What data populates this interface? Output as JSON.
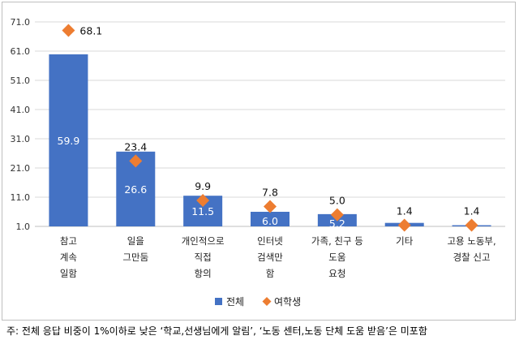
{
  "chart_data": {
    "type": "bar",
    "categories": [
      [
        "참고",
        "계속",
        "일함"
      ],
      [
        "일을",
        "그만둠"
      ],
      [
        "개인적으로",
        "직접",
        "항의"
      ],
      [
        "인터넷",
        "검색만",
        "함"
      ],
      [
        "가족, 친구 등",
        "도움",
        "요청"
      ],
      [
        "기타"
      ],
      [
        "고용 노동부,",
        "경찰 신고"
      ]
    ],
    "series": [
      {
        "name": "전체",
        "kind": "bar",
        "color": "#4472c4",
        "values": [
          59.9,
          26.6,
          11.5,
          6.0,
          5.2,
          2.2,
          1.4
        ]
      },
      {
        "name": "여학생",
        "kind": "marker",
        "color": "#ed7d31",
        "values": [
          68.1,
          23.4,
          9.9,
          7.8,
          5.0,
          1.4,
          1.4
        ]
      }
    ],
    "bar_labels": [
      "59.9",
      "26.6",
      "11.5",
      "6.0",
      "5.2",
      "",
      ""
    ],
    "marker_labels": [
      "68.1",
      "23.4",
      "9.9",
      "7.8",
      "5.0",
      "1.4",
      "1.4"
    ],
    "yticks": [
      "71.0",
      "61.0",
      "51.0",
      "41.0",
      "31.0",
      "21.0",
      "11.0",
      "1.0"
    ],
    "ylim": [
      1,
      71
    ],
    "grid": true,
    "legend": "bottom-center"
  },
  "footnote": "주: 전체 응답 비중이 1%이하로 낮은 ‘학교,선생님에게 알림’, ‘노동 센터,노동 단체 도움 받음’은 미포함"
}
